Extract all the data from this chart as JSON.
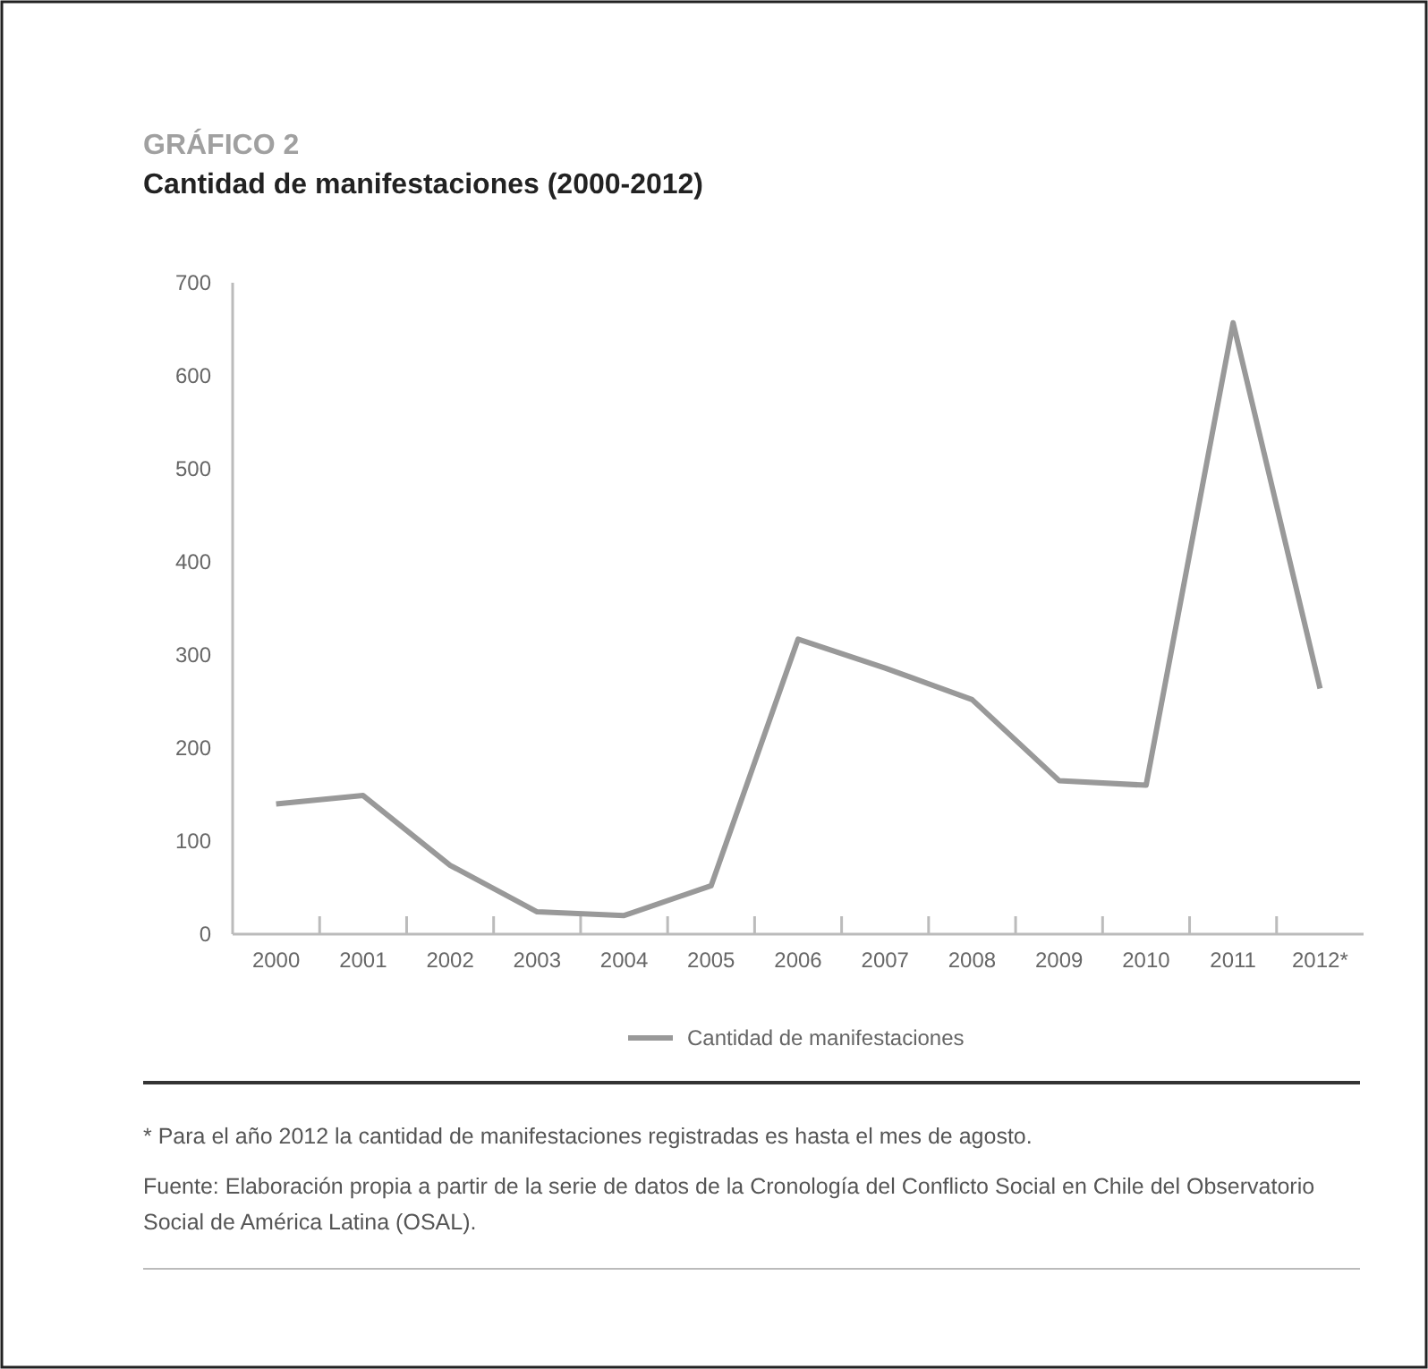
{
  "chart_data": {
    "type": "line",
    "title": "GRÁFICO 2",
    "subtitle": "Cantidad de manifestaciones (2000-2012)",
    "categories": [
      "2000",
      "2001",
      "2002",
      "2003",
      "2004",
      "2005",
      "2006",
      "2007",
      "2008",
      "2009",
      "2010",
      "2011",
      "2012*"
    ],
    "series": [
      {
        "name": "Cantidad de manifestaciones",
        "color": "#999999",
        "values": [
          140,
          149,
          74,
          24,
          20,
          52,
          317,
          286,
          252,
          165,
          160,
          657,
          264
        ]
      }
    ],
    "ylim": [
      0,
      700
    ],
    "yticks": [
      0,
      100,
      200,
      300,
      400,
      500,
      600,
      700
    ],
    "grid": false,
    "legend": "bottom",
    "marker": "none",
    "line_style": "solid",
    "annotations": [
      "* Para el año 2012 la cantidad de manifestaciones registradas es hasta el mes de agosto.",
      "Fuente: Elaboración propia a partir de la serie de datos de la Cronología del Conflicto Social en Chile del Observatorio Social de América Latina (OSAL)."
    ]
  }
}
